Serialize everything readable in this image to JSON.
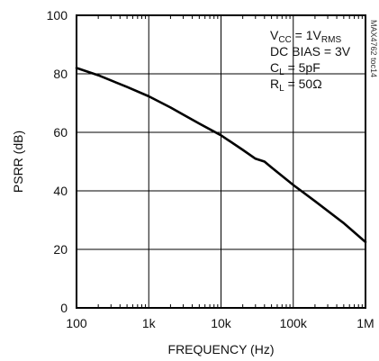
{
  "chart_data": {
    "type": "line",
    "title": "",
    "xlabel": "FREQUENCY (Hz)",
    "ylabel": "PSRR (dB)",
    "x_scale": "log",
    "xlim": [
      100,
      1000000
    ],
    "ylim": [
      0,
      100
    ],
    "x_ticks": [
      100,
      1000,
      10000,
      100000,
      1000000
    ],
    "x_tick_labels": [
      "100",
      "1k",
      "10k",
      "100k",
      "1M"
    ],
    "y_ticks": [
      0,
      20,
      40,
      60,
      80,
      100
    ],
    "y_tick_labels": [
      "0",
      "20",
      "40",
      "60",
      "80",
      "100"
    ],
    "grid": true,
    "series": [
      {
        "x": [
          100,
          200,
          500,
          1000,
          2000,
          5000,
          10000,
          20000,
          30000,
          40000,
          50000,
          100000,
          200000,
          500000,
          1000000
        ],
        "y": [
          82,
          79.5,
          75.5,
          72.3,
          68.5,
          63,
          59,
          54,
          51,
          50,
          48,
          42,
          36.5,
          29,
          22.5
        ]
      }
    ],
    "annotations": [
      {
        "main": "V",
        "sub": "CC",
        "rest": " = 1V",
        "sub2": "RMS"
      },
      {
        "main": "DC BIAS = 3V",
        "sub": "",
        "rest": "",
        "sub2": ""
      },
      {
        "main": "C",
        "sub": "L",
        "rest": " = 5pF",
        "sub2": ""
      },
      {
        "main": "R",
        "sub": "L",
        "rest": " = 50Ω",
        "sub2": ""
      }
    ],
    "side_label": "MAX4762 toc14"
  }
}
